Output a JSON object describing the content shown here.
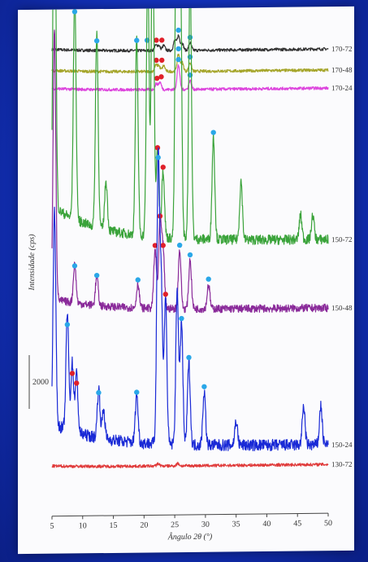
{
  "chart_data": {
    "type": "line",
    "xlabel": "Ângulo 2θ (°)",
    "ylabel": "Intensidade (cps)",
    "xlim": [
      5,
      50
    ],
    "x_ticks": [
      "5",
      "10",
      "15",
      "20",
      "25",
      "30",
      "35",
      "40",
      "45",
      "50"
    ],
    "scale_bar_label": "2000",
    "grid": false,
    "legend": "labels at right end of each trace",
    "series": [
      {
        "name": "170-72",
        "color": "#333333",
        "baseline": 0.05,
        "scale": 0.02,
        "noise": 0.003,
        "peaks": [
          [
            21.9,
            0.01
          ],
          [
            22.4,
            0.01
          ],
          [
            23.2,
            0.01
          ],
          [
            25.0,
            0.02
          ],
          [
            25.6,
            0.03
          ],
          [
            26.2,
            0.015
          ],
          [
            27.5,
            0.015
          ]
        ],
        "blue_markers": [
          [
            20.5,
            0.01
          ],
          [
            25.6,
            0.03
          ],
          [
            27.5,
            0.015
          ]
        ],
        "red_markers": [
          [
            22.0,
            0.01
          ],
          [
            22.9,
            0.01
          ]
        ]
      },
      {
        "name": "170-48",
        "color": "#a5a52a",
        "baseline": 0.093,
        "scale": 0.02,
        "noise": 0.003,
        "peaks": [
          [
            21.9,
            0.012
          ],
          [
            22.4,
            0.012
          ],
          [
            23.2,
            0.012
          ],
          [
            25.6,
            0.035
          ],
          [
            26.2,
            0.018
          ],
          [
            27.5,
            0.018
          ]
        ],
        "blue_markers": [
          [
            25.6,
            0.035
          ],
          [
            27.5,
            0.018
          ]
        ],
        "red_markers": [
          [
            22.0,
            0.012
          ],
          [
            22.9,
            0.012
          ]
        ]
      },
      {
        "name": "170-24",
        "color": "#dd44dd",
        "baseline": 0.13,
        "scale": 0.02,
        "noise": 0.003,
        "peaks": [
          [
            22.0,
            0.012
          ],
          [
            22.6,
            0.015
          ],
          [
            25.6,
            0.05
          ],
          [
            27.5,
            0.018
          ]
        ],
        "blue_markers": [
          [
            25.6,
            0.05
          ],
          [
            27.5,
            0.018
          ]
        ],
        "red_markers": [
          [
            22.1,
            0.012
          ],
          [
            22.8,
            0.015
          ]
        ]
      },
      {
        "name": "150-72",
        "color": "#3aa33a",
        "baseline": 0.44,
        "scale": 0.3,
        "noise": 0.01,
        "peaks": [
          [
            5.4,
            0.82
          ],
          [
            8.7,
            0.46
          ],
          [
            12.3,
            0.4
          ],
          [
            13.8,
            0.1
          ],
          [
            18.8,
            0.4
          ],
          [
            20.6,
            0.55
          ],
          [
            21.4,
            0.66
          ],
          [
            22.2,
            0.18
          ],
          [
            23.1,
            0.14
          ],
          [
            25.3,
            0.83
          ],
          [
            25.9,
            0.6
          ],
          [
            27.5,
            0.55
          ],
          [
            31.3,
            0.21
          ],
          [
            35.8,
            0.12
          ],
          [
            45.5,
            0.05
          ],
          [
            47.5,
            0.05
          ]
        ],
        "blue_markers": [
          [
            8.7,
            0.46
          ],
          [
            12.3,
            0.4
          ],
          [
            18.8,
            0.4
          ],
          [
            20.6,
            0.55
          ],
          [
            21.4,
            0.66
          ],
          [
            25.9,
            0.6
          ],
          [
            27.5,
            0.55
          ],
          [
            31.3,
            0.21
          ]
        ],
        "red_markers": [
          [
            22.2,
            0.18
          ],
          [
            23.1,
            0.14
          ]
        ]
      },
      {
        "name": "150-48",
        "color": "#8a2a9a",
        "baseline": 0.58,
        "scale": 0.1,
        "noise": 0.008,
        "peaks": [
          [
            5.4,
            0.55
          ],
          [
            8.7,
            0.08
          ],
          [
            12.3,
            0.06
          ],
          [
            19.0,
            0.05
          ],
          [
            21.8,
            0.12
          ],
          [
            22.6,
            0.18
          ],
          [
            23.1,
            0.12
          ],
          [
            25.8,
            0.12
          ],
          [
            27.5,
            0.1
          ],
          [
            30.5,
            0.05
          ]
        ],
        "blue_markers": [
          [
            8.7,
            0.08
          ],
          [
            12.3,
            0.06
          ],
          [
            19.0,
            0.05
          ],
          [
            25.8,
            0.12
          ],
          [
            27.5,
            0.1
          ],
          [
            30.5,
            0.05
          ]
        ],
        "red_markers": [
          [
            21.8,
            0.12
          ],
          [
            22.6,
            0.18
          ],
          [
            23.1,
            0.12
          ]
        ]
      },
      {
        "name": "150-24",
        "color": "#1a2ad6",
        "baseline": 0.86,
        "scale": 0.2,
        "noise": 0.012,
        "peaks": [
          [
            5.4,
            0.44
          ],
          [
            7.5,
            0.24
          ],
          [
            8.3,
            0.14
          ],
          [
            9.0,
            0.12
          ],
          [
            12.6,
            0.1
          ],
          [
            13.4,
            0.06
          ],
          [
            18.8,
            0.1
          ],
          [
            22.3,
            0.58
          ],
          [
            22.8,
            0.32
          ],
          [
            23.5,
            0.3
          ],
          [
            25.4,
            0.32
          ],
          [
            26.1,
            0.25
          ],
          [
            27.3,
            0.17
          ],
          [
            29.8,
            0.11
          ],
          [
            35.0,
            0.05
          ],
          [
            46.0,
            0.08
          ],
          [
            48.8,
            0.08
          ]
        ],
        "blue_markers": [
          [
            7.5,
            0.24
          ],
          [
            12.6,
            0.1
          ],
          [
            18.8,
            0.1
          ],
          [
            22.3,
            0.58
          ],
          [
            26.1,
            0.25
          ],
          [
            27.3,
            0.17
          ],
          [
            29.8,
            0.11
          ]
        ],
        "red_markers": [
          [
            8.3,
            0.14
          ],
          [
            9.0,
            0.12
          ],
          [
            23.5,
            0.3
          ]
        ]
      },
      {
        "name": "130-72",
        "color": "#e03a3a",
        "baseline": 0.9,
        "scale": 0.01,
        "noise": 0.003,
        "peaks": [
          [
            22.3,
            0.005
          ],
          [
            25.5,
            0.005
          ]
        ],
        "blue_markers": [],
        "red_markers": []
      }
    ]
  }
}
